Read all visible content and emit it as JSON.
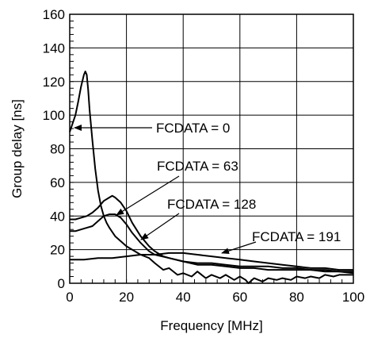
{
  "chart_data": {
    "type": "line",
    "title": "",
    "xlabel": "Frequency [MHz]",
    "ylabel": "Group delay [ns]",
    "xlim": [
      0,
      100
    ],
    "ylim": [
      0,
      160
    ],
    "grid": true,
    "x_ticks": [
      0,
      20,
      40,
      60,
      80,
      100
    ],
    "y_ticks": [
      0,
      20,
      40,
      60,
      80,
      100,
      120,
      140,
      160
    ],
    "x_tick_labels": [
      "0",
      "20",
      "40",
      "60",
      "80",
      "100"
    ],
    "y_tick_labels": [
      "0",
      "20",
      "40",
      "60",
      "80",
      "100",
      "120",
      "140",
      "160"
    ],
    "annotations": [
      {
        "text": "FCDATA = 0",
        "series": 0
      },
      {
        "text": "FCDATA = 63",
        "series": 1
      },
      {
        "text": "FCDATA = 128",
        "series": 2
      },
      {
        "text": "FCDATA = 191",
        "series": 3
      }
    ],
    "series": [
      {
        "name": "FCDATA = 0",
        "x": [
          0,
          1,
          2,
          3,
          4,
          5,
          5.5,
          6,
          6.5,
          7,
          8,
          9,
          10,
          11,
          12,
          13,
          14,
          16,
          18,
          20,
          22,
          25,
          28,
          30,
          33,
          35,
          38,
          40,
          43,
          45,
          48,
          50,
          53,
          55,
          58,
          60,
          62,
          63,
          65,
          68,
          70,
          73,
          75,
          78,
          80,
          83,
          85,
          88,
          90,
          93,
          95,
          98,
          100
        ],
        "y": [
          90,
          95,
          100,
          108,
          117,
          124,
          126,
          124,
          115,
          103,
          85,
          68,
          55,
          46,
          40,
          36,
          33,
          28,
          25,
          22,
          20,
          17,
          15,
          12,
          8,
          9,
          5,
          6,
          4,
          7,
          3,
          5,
          3,
          5,
          2,
          4,
          2,
          0,
          3,
          1,
          3,
          2,
          3,
          2,
          4,
          3,
          4,
          3,
          5,
          4,
          5,
          5,
          5
        ]
      },
      {
        "name": "FCDATA = 63",
        "x": [
          0,
          2,
          4,
          6,
          8,
          10,
          12,
          14,
          15,
          16,
          18,
          20,
          22,
          25,
          28,
          30,
          33,
          35,
          40,
          45,
          50,
          55,
          60,
          65,
          70,
          75,
          80,
          85,
          90,
          95,
          100
        ],
        "y": [
          38,
          38,
          39,
          40,
          42,
          45,
          49,
          51,
          52,
          51,
          48,
          43,
          36,
          28,
          22,
          19,
          16,
          15,
          13,
          11,
          11,
          10,
          9,
          9,
          8,
          8,
          8,
          8,
          7,
          7,
          6
        ]
      },
      {
        "name": "FCDATA = 128",
        "x": [
          0,
          2,
          4,
          6,
          8,
          10,
          12,
          14,
          16,
          18,
          20,
          22,
          25,
          28,
          30,
          35,
          40,
          45,
          50,
          55,
          60,
          65,
          70,
          75,
          80,
          85,
          90,
          95,
          100
        ],
        "y": [
          31,
          31,
          32,
          33,
          34,
          37,
          40,
          41,
          41,
          39,
          35,
          30,
          24,
          19,
          17,
          15,
          13,
          12,
          12,
          11,
          10,
          10,
          10,
          9,
          9,
          8,
          8,
          7,
          7
        ]
      },
      {
        "name": "FCDATA = 191",
        "x": [
          0,
          2,
          5,
          10,
          15,
          20,
          25,
          30,
          35,
          40,
          45,
          50,
          55,
          60,
          65,
          70,
          75,
          80,
          85,
          90,
          95,
          100
        ],
        "y": [
          14,
          14,
          14,
          15,
          15,
          16,
          17,
          17,
          18,
          18,
          17,
          16,
          15,
          14,
          13,
          12,
          11,
          10,
          9,
          9,
          8,
          8
        ]
      }
    ]
  }
}
